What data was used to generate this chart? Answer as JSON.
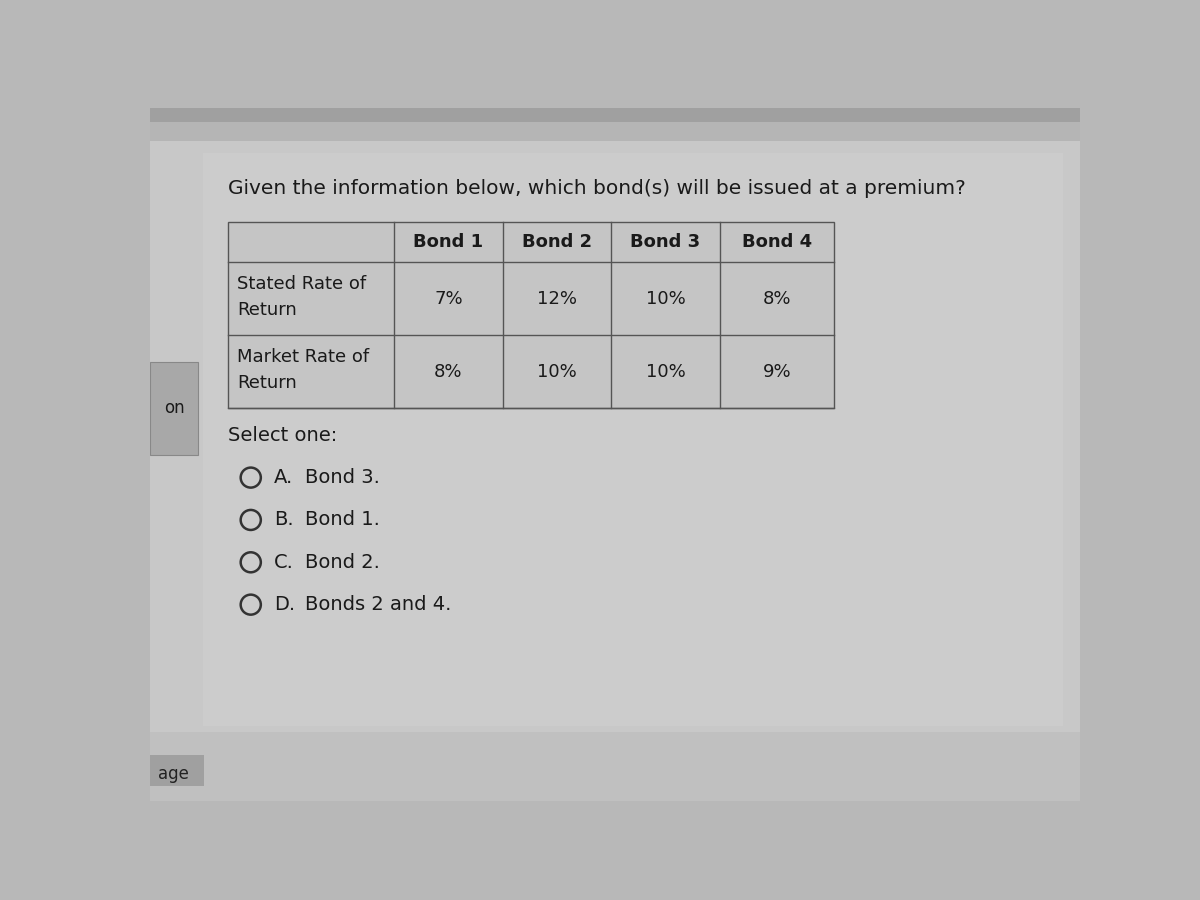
{
  "question": "Given the information below, which bond(s) will be issued at a premium?",
  "table_headers": [
    "",
    "Bond 1",
    "Bond 2",
    "Bond 3",
    "Bond 4"
  ],
  "row1_label_line1": "Stated Rate of",
  "row1_label_line2": "Return",
  "row1_values": [
    "7%",
    "12%",
    "10%",
    "8%"
  ],
  "row2_label_line1": "Market Rate of",
  "row2_label_line2": "Return",
  "row2_values": [
    "8%",
    "10%",
    "10%",
    "9%"
  ],
  "select_one": "Select one:",
  "options": [
    {
      "letter": "A.",
      "text": "Bond 3."
    },
    {
      "letter": "B.",
      "text": "Bond 1."
    },
    {
      "letter": "C.",
      "text": "Bond 2."
    },
    {
      "letter": "D.",
      "text": "Bonds 2 and 4."
    }
  ],
  "bg_outer": "#b8b8b8",
  "bg_top_strip": "#c0c0c0",
  "bg_main": "#cbcbcb",
  "bg_left_box": "#9a9a9a",
  "bg_bottom": "#c8c8c8",
  "table_line_color": "#555555",
  "text_color": "#1a1a1a",
  "font_size_question": 14.5,
  "font_size_table_header": 13,
  "font_size_table_data": 13,
  "font_size_options": 14,
  "page_label": "age",
  "on_label": "on"
}
